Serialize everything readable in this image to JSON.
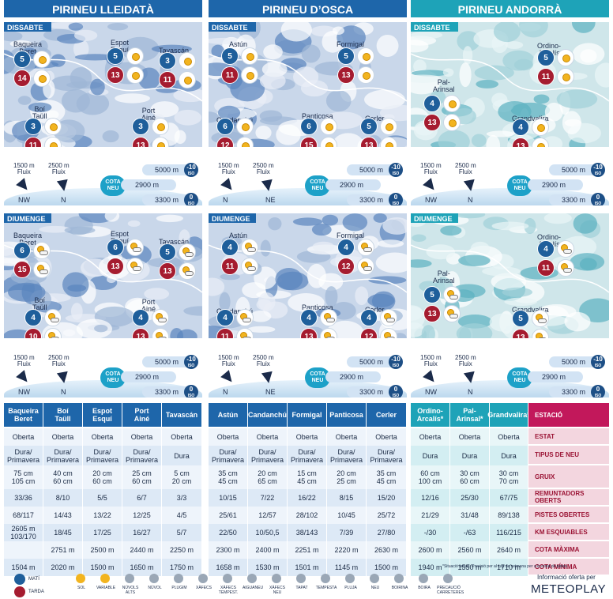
{
  "regions": [
    {
      "title": "PIRINEU LLEIDATÀ",
      "color": "#1e66aa",
      "sat": {
        "day": "DISSABTE",
        "stations": [
          {
            "name": "Baqueira\nBeret",
            "am": "5",
            "pm": "14",
            "amwx": "sun",
            "pmwx": "sun"
          },
          {
            "name": "Espot\nEsquí",
            "am": "5",
            "pm": "13",
            "amwx": "sun",
            "pmwx": "sun"
          },
          {
            "name": "Tavascán",
            "am": "3",
            "pm": "11",
            "amwx": "sun",
            "pmwx": "sun"
          },
          {
            "name": "Boí\nTaüll",
            "am": "3",
            "pm": "11",
            "amwx": "sun",
            "pmwx": "sun"
          },
          {
            "name": "Port\nAiné",
            "am": "3",
            "pm": "13",
            "amwx": "sun",
            "pmwx": "sun"
          }
        ],
        "flux1": "1500 m\nFluix",
        "flux2": "2500 m\nFluix",
        "dir1": "NW",
        "dir2": "N",
        "alt_top": "5000 m",
        "iso_top": "-10",
        "alt_mid": "2900 m",
        "alt_bot": "3300 m",
        "iso_bot": "0"
      },
      "sun": {
        "day": "DIUMENGE",
        "stations": [
          {
            "name": "Baqueira\nBeret",
            "am": "6",
            "pm": "15",
            "amwx": "var",
            "pmwx": "var"
          },
          {
            "name": "Espot\nEsquí",
            "am": "6",
            "pm": "13",
            "amwx": "var",
            "pmwx": "var"
          },
          {
            "name": "Tavascán",
            "am": "5",
            "pm": "13",
            "amwx": "var",
            "pmwx": "var"
          },
          {
            "name": "Boí\nTaüll",
            "am": "4",
            "pm": "10",
            "amwx": "var",
            "pmwx": "var"
          },
          {
            "name": "Port\nAiné",
            "am": "4",
            "pm": "13",
            "amwx": "var",
            "pmwx": "var"
          }
        ],
        "flux1": "1500 m\nFluix",
        "flux2": "2500 m\nFluix",
        "dir1": "NW",
        "dir2": "N",
        "alt_top": "5000 m",
        "iso_top": "-10",
        "alt_mid": "2900 m",
        "alt_bot": "3300 m",
        "iso_bot": "0"
      }
    },
    {
      "title": "PIRINEU D’OSCA",
      "color": "#1e66aa",
      "sat": {
        "day": "DISSABTE",
        "stations": [
          {
            "name": "Astún",
            "am": "5",
            "pm": "11",
            "amwx": "sun",
            "pmwx": "sun"
          },
          {
            "name": "Formigal",
            "am": "5",
            "pm": "13",
            "amwx": "sun",
            "pmwx": "sun"
          },
          {
            "name": "Candanchú",
            "am": "6",
            "pm": "12",
            "amwx": "sun",
            "pmwx": "sun"
          },
          {
            "name": "Panticosa",
            "am": "6",
            "pm": "15",
            "amwx": "sun",
            "pmwx": "sun"
          },
          {
            "name": "Cerler",
            "am": "5",
            "pm": "13",
            "amwx": "sun",
            "pmwx": "sun"
          }
        ],
        "flux1": "1500 m\nFluix",
        "flux2": "2500 m\nFluix",
        "dir1": "N",
        "dir2": "NE",
        "alt_top": "5000 m",
        "iso_top": "-10",
        "alt_mid": "2900 m",
        "alt_bot": "3300 m",
        "iso_bot": "0"
      },
      "sun": {
        "day": "DIUMENGE",
        "stations": [
          {
            "name": "Astún",
            "am": "4",
            "pm": "11",
            "amwx": "var",
            "pmwx": "var"
          },
          {
            "name": "Formigal",
            "am": "4",
            "pm": "12",
            "amwx": "var",
            "pmwx": "var"
          },
          {
            "name": "Candanchú",
            "am": "4",
            "pm": "11",
            "amwx": "var",
            "pmwx": "var"
          },
          {
            "name": "Panticosa",
            "am": "4",
            "pm": "13",
            "amwx": "var",
            "pmwx": "var"
          },
          {
            "name": "Cerler",
            "am": "4",
            "pm": "12",
            "amwx": "var",
            "pmwx": "var"
          }
        ],
        "flux1": "1500 m\nFluix",
        "flux2": "2500 m\nFluix",
        "dir1": "N",
        "dir2": "NE",
        "alt_top": "5000 m",
        "iso_top": "-10",
        "alt_mid": "2900 m",
        "alt_bot": "3300 m",
        "iso_bot": "0"
      }
    },
    {
      "title": "PIRINEU ANDORRÀ",
      "color": "#1ea3b8",
      "sat": {
        "day": "DISSABTE",
        "stations": [
          {
            "name": "Ordino-\nArcalís",
            "am": "5",
            "pm": "11",
            "amwx": "sun",
            "pmwx": "sun"
          },
          {
            "name": "Pal-\nArinsal",
            "am": "4",
            "pm": "13",
            "amwx": "sun",
            "pmwx": "sun"
          },
          {
            "name": "Grandvalira",
            "am": "4",
            "pm": "13",
            "amwx": "sun",
            "pmwx": "sun"
          }
        ],
        "flux1": "1500 m\nFluix",
        "flux2": "2500 m\nFluix",
        "dir1": "NW",
        "dir2": "N",
        "alt_top": "5000 m",
        "iso_top": "-10",
        "alt_mid": "2900 m",
        "alt_bot": "3300 m",
        "iso_bot": "0"
      },
      "sun": {
        "day": "DIUMENGE",
        "stations": [
          {
            "name": "Ordino-\nArcalís",
            "am": "4",
            "pm": "11",
            "amwx": "var",
            "pmwx": "var"
          },
          {
            "name": "Pal-\nArinsal",
            "am": "5",
            "pm": "13",
            "amwx": "var",
            "pmwx": "var"
          },
          {
            "name": "Grandvalira",
            "am": "5",
            "pm": "13",
            "amwx": "var",
            "pmwx": "var"
          }
        ],
        "flux1": "1500 m\nFluix",
        "flux2": "2500 m\nFluix",
        "dir1": "NW",
        "dir2": "N",
        "alt_top": "5000 m",
        "iso_top": "-10",
        "alt_mid": "2900 m",
        "alt_bot": "3300 m",
        "iso_bot": "0"
      }
    }
  ],
  "table": {
    "columns": [
      {
        "name": "Baqueira\nBeret",
        "color": "#1e66aa",
        "values": [
          "Oberta",
          "Dura/\nPrimavera",
          "75 cm\n105 cm",
          "33/36",
          "68/117",
          "2605 m\n103/170",
          "",
          "1504 m"
        ]
      },
      {
        "name": "Boí\nTaüll",
        "color": "#1e66aa",
        "values": [
          "Oberta",
          "Dura/\nPrimavera",
          "40 cm\n60 cm",
          "8/10",
          "14/43",
          "18/45",
          "2751 m",
          "2020 m"
        ]
      },
      {
        "name": "Espot\nEsquí",
        "color": "#1e66aa",
        "values": [
          "Oberta",
          "Dura/\nPrimavera",
          "20 cm\n60 cm",
          "5/5",
          "13/22",
          "17/25",
          "2500 m",
          "1500 m"
        ]
      },
      {
        "name": "Port\nAiné",
        "color": "#1e66aa",
        "values": [
          "Oberta",
          "Dura/\nPrimavera",
          "25 cm\n60 cm",
          "6/7",
          "12/25",
          "16/27",
          "2440 m",
          "1650 m"
        ]
      },
      {
        "name": "Tavascán",
        "color": "#1e66aa",
        "values": [
          "Oberta",
          "Dura",
          "5 cm\n20 cm",
          "3/3",
          "4/5",
          "5/7",
          "2250 m",
          "1750 m"
        ]
      },
      {
        "name": "Astún",
        "color": "#1e66aa",
        "values": [
          "Oberta",
          "Dura/\nPrimavera",
          "35 cm\n45 cm",
          "10/15",
          "25/61",
          "22/50",
          "2300 m",
          "1658 m"
        ]
      },
      {
        "name": "Candanchú",
        "color": "#1e66aa",
        "values": [
          "Oberta",
          "Dura/\nPrimavera",
          "20 cm\n65 cm",
          "7/22",
          "12/57",
          "10/50,5",
          "2400 m",
          "1530 m"
        ]
      },
      {
        "name": "Formigal",
        "color": "#1e66aa",
        "values": [
          "Oberta",
          "Dura/\nPrimavera",
          "15 cm\n45 cm",
          "16/22",
          "28/102",
          "38/143",
          "2251 m",
          "1501 m"
        ]
      },
      {
        "name": "Panticosa",
        "color": "#1e66aa",
        "values": [
          "Oberta",
          "Dura/\nPrimavera",
          "20 cm\n25 cm",
          "8/15",
          "10/45",
          "7/39",
          "2220 m",
          "1145 m"
        ]
      },
      {
        "name": "Cerler",
        "color": "#1e66aa",
        "values": [
          "Oberta",
          "Dura/\nPrimavera",
          "35 cm\n45 cm",
          "15/20",
          "25/72",
          "27/80",
          "2630 m",
          "1500 m"
        ]
      },
      {
        "name": "Ordino-\nArcalís*",
        "color": "#1ea3b8",
        "values": [
          "Oberta",
          "Dura",
          "60 cm\n100 cm",
          "12/16",
          "21/29",
          "-/30",
          "2600 m",
          "1940 m"
        ]
      },
      {
        "name": "Pal-\nArinsal*",
        "color": "#1ea3b8",
        "values": [
          "Oberta",
          "Dura",
          "30 cm\n60 cm",
          "25/30",
          "31/48",
          "-/63",
          "2560 m",
          "1550 m"
        ]
      },
      {
        "name": "Grandvalira*",
        "color": "#1ea3b8",
        "values": [
          "Oberta",
          "Dura",
          "30 cm\n70 cm",
          "67/75",
          "89/138",
          "116/215",
          "2640 m",
          "1710 m"
        ]
      }
    ],
    "head_label": "ESTACIÓ",
    "labels": [
      "ESTAT",
      "TIPUS DE NEU",
      "GRUIX",
      "REMUNTADORS\nOBERTS",
      "PISTES OBERTES",
      "KM ESQUIABLES",
      "COTA MÀXIMA",
      "COTA MÍNIMA"
    ],
    "footnote": "*Situació actual. Previsió per al cap de setmana per a la resta de pistes"
  },
  "legend": {
    "mati": "MATÍ",
    "tarda": "TARDA",
    "items": [
      "SOL",
      "VARIABLE",
      "NÚVOLS\nALTS",
      "NÚVOL",
      "PLUGIM",
      "XÀFECS",
      "XÀFECS\nTEMPEST.",
      "AIGUANEU",
      "XÀFECS\nNEU",
      "TAPAT",
      "TEMPESTA",
      "PLUJA",
      "NEU",
      "BOIRINA",
      "BOIRA",
      "PRECAUCIÓ\nCARRETERES"
    ],
    "credit_label": "Informació oferta per",
    "credit_brand": "METEOPLAY"
  },
  "colors": {
    "leida_blue": "#1e66aa",
    "andorra_teal": "#1ea3b8",
    "morning": "#1f5f9b",
    "afternoon": "#a51c30",
    "label_pink": "#9b1435"
  }
}
